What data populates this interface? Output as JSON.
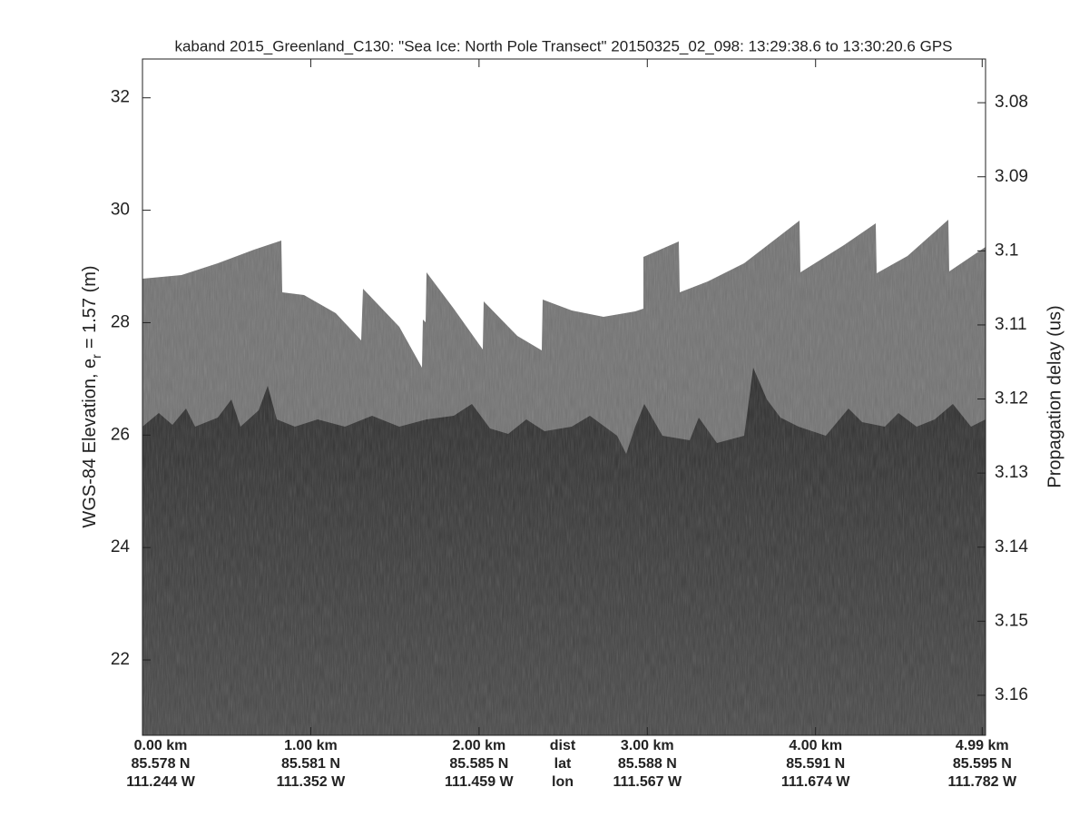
{
  "chart_data": {
    "type": "echogram",
    "title": "kaband 2015_Greenland_C130: \"Sea Ice: North Pole Transect\"  20150325_02_098: 13:29:38.6 to 13:30:20.6 GPS",
    "ylabel": {
      "text": "WGS-84 Elevation, e",
      "subscript": "r",
      "suffix": "= 1.57 (m)"
    },
    "y2label": "Propagation delay (us)",
    "ylim": [
      20.66,
      32.69
    ],
    "yticks": [
      22,
      24,
      26,
      28,
      30,
      32
    ],
    "y2lim": [
      3.0741,
      3.1654
    ],
    "y2_reversed": true,
    "y2ticks": [
      3.08,
      3.09,
      3.1,
      3.11,
      3.12,
      3.13,
      3.14,
      3.15,
      3.16
    ],
    "xlim": [
      0,
      5.01
    ],
    "xticks": [
      {
        "value": 0,
        "label": "0.00 km"
      },
      {
        "value": 1,
        "label": "1.00 km"
      },
      {
        "value": 2,
        "label": "2.00 km"
      },
      {
        "value": 3,
        "label": "3.00 km"
      },
      {
        "value": 4,
        "label": "4.00 km"
      },
      {
        "value": 4.99,
        "label": "4.99 km"
      }
    ],
    "xtick_lat": [
      "85.578 N",
      "85.581 N",
      "85.585 N",
      "85.588 N",
      "85.591 N",
      "85.595 N"
    ],
    "xtick_lon": [
      "111.244 W",
      "111.352 W",
      "111.459 W",
      "111.567 W",
      "111.674 W",
      "111.782 W"
    ],
    "x_row_labels": [
      "dist",
      "lat",
      "lon"
    ]
  }
}
